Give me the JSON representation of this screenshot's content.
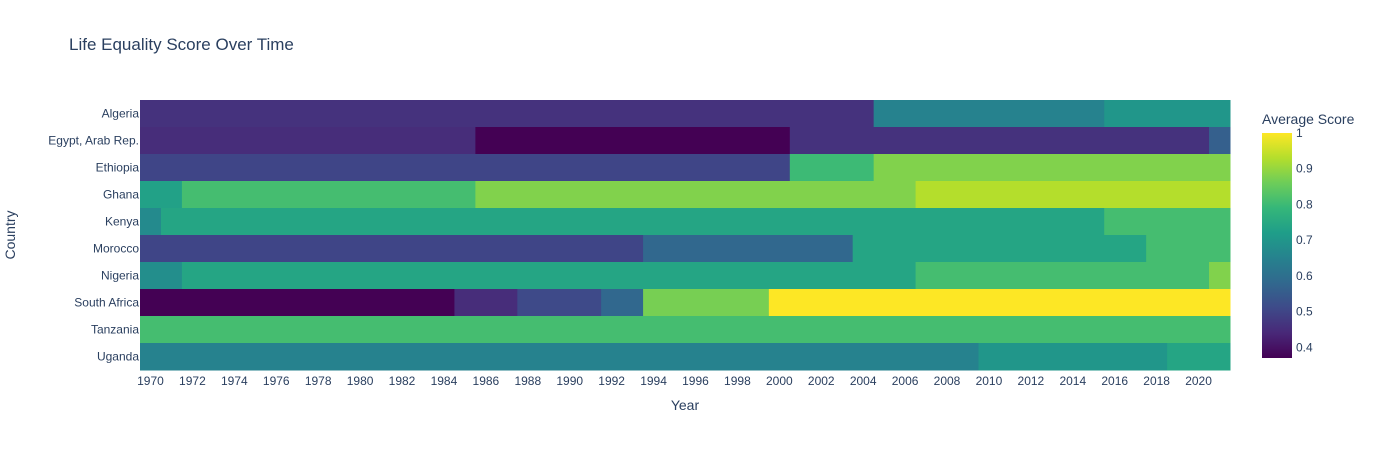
{
  "chart_data": {
    "type": "heatmap",
    "title": "Life Equality Score Over Time",
    "xlabel": "Year",
    "ylabel": "Country",
    "colorbar_title": "Average Score",
    "color_scale": "Viridis",
    "color_range": [
      0.37,
      1.0
    ],
    "colorbar_ticks": [
      "0.4",
      "0.5",
      "0.6",
      "0.7",
      "0.8",
      "0.9",
      "1"
    ],
    "x_range": [
      1969.5,
      2021.5
    ],
    "x_ticks": [
      1970,
      1972,
      1974,
      1976,
      1978,
      1980,
      1982,
      1984,
      1986,
      1988,
      1990,
      1992,
      1994,
      1996,
      1998,
      2000,
      2002,
      2004,
      2006,
      2008,
      2010,
      2012,
      2014,
      2016,
      2018,
      2020
    ],
    "countries": [
      "Algeria",
      "Egypt, Arab Rep.",
      "Ethiopia",
      "Ghana",
      "Kenya",
      "Morocco",
      "Nigeria",
      "South Africa",
      "Tanzania",
      "Uganda"
    ],
    "segments": {
      "Algeria": [
        {
          "start": 1970,
          "end": 2004,
          "value": 0.46
        },
        {
          "start": 2005,
          "end": 2015,
          "value": 0.65
        },
        {
          "start": 2016,
          "end": 2021,
          "value": 0.7
        }
      ],
      "Egypt, Arab Rep.": [
        {
          "start": 1970,
          "end": 1985,
          "value": 0.45
        },
        {
          "start": 1986,
          "end": 2000,
          "value": 0.37
        },
        {
          "start": 2001,
          "end": 2020,
          "value": 0.46
        },
        {
          "start": 2021,
          "end": 2021,
          "value": 0.56
        }
      ],
      "Ethiopia": [
        {
          "start": 1970,
          "end": 2000,
          "value": 0.5
        },
        {
          "start": 2001,
          "end": 2004,
          "value": 0.8
        },
        {
          "start": 2005,
          "end": 2021,
          "value": 0.88
        }
      ],
      "Ghana": [
        {
          "start": 1970,
          "end": 1971,
          "value": 0.73
        },
        {
          "start": 1972,
          "end": 1985,
          "value": 0.81
        },
        {
          "start": 1986,
          "end": 2006,
          "value": 0.88
        },
        {
          "start": 2007,
          "end": 2021,
          "value": 0.93
        }
      ],
      "Kenya": [
        {
          "start": 1970,
          "end": 1970,
          "value": 0.67
        },
        {
          "start": 1971,
          "end": 2015,
          "value": 0.74
        },
        {
          "start": 2016,
          "end": 2021,
          "value": 0.81
        }
      ],
      "Morocco": [
        {
          "start": 1970,
          "end": 1993,
          "value": 0.5
        },
        {
          "start": 1994,
          "end": 2003,
          "value": 0.58
        },
        {
          "start": 2004,
          "end": 2017,
          "value": 0.74
        },
        {
          "start": 2018,
          "end": 2021,
          "value": 0.81
        }
      ],
      "Nigeria": [
        {
          "start": 1970,
          "end": 1971,
          "value": 0.68
        },
        {
          "start": 1972,
          "end": 2006,
          "value": 0.74
        },
        {
          "start": 2007,
          "end": 2020,
          "value": 0.81
        },
        {
          "start": 2021,
          "end": 2021,
          "value": 0.88
        }
      ],
      "South Africa": [
        {
          "start": 1970,
          "end": 1984,
          "value": 0.37
        },
        {
          "start": 1985,
          "end": 1987,
          "value": 0.45
        },
        {
          "start": 1988,
          "end": 1991,
          "value": 0.51
        },
        {
          "start": 1992,
          "end": 1993,
          "value": 0.58
        },
        {
          "start": 1994,
          "end": 1999,
          "value": 0.87
        },
        {
          "start": 2000,
          "end": 2021,
          "value": 1.0
        }
      ],
      "Tanzania": [
        {
          "start": 1970,
          "end": 2021,
          "value": 0.81
        }
      ],
      "Uganda": [
        {
          "start": 1970,
          "end": 2009,
          "value": 0.65
        },
        {
          "start": 2010,
          "end": 2018,
          "value": 0.7
        },
        {
          "start": 2019,
          "end": 2021,
          "value": 0.74
        }
      ]
    }
  }
}
